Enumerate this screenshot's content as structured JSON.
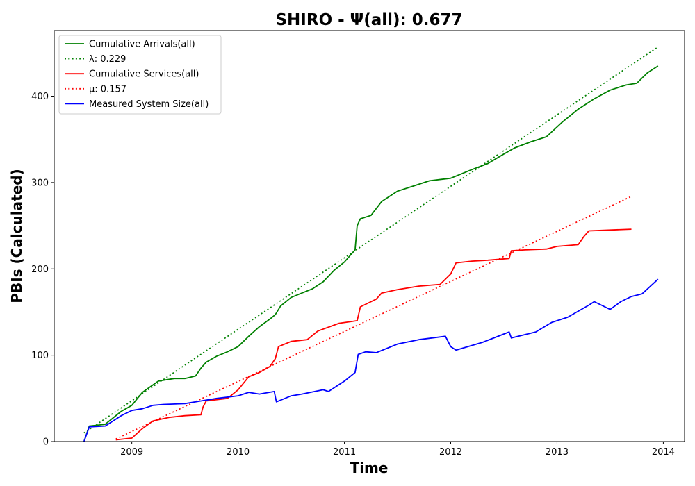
{
  "chart_data": {
    "type": "line",
    "title": "SHIRO -  Ψ(all): 0.677",
    "xlabel": "Time",
    "ylabel": "PBIs (Calculated)",
    "xlim": [
      2008.27,
      2014.2
    ],
    "ylim": [
      0,
      476
    ],
    "x_ticks": [
      2009,
      2010,
      2011,
      2012,
      2013,
      2014
    ],
    "y_ticks": [
      0,
      100,
      200,
      300,
      400
    ],
    "grid": false,
    "legend_position": "top-left",
    "series": [
      {
        "name": "Cumulative Arrivals(all)",
        "color": "#008000",
        "style": "solid",
        "x": [
          2008.55,
          2008.6,
          2008.75,
          2008.9,
          2009.0,
          2009.1,
          2009.25,
          2009.4,
          2009.5,
          2009.6,
          2009.65,
          2009.7,
          2009.8,
          2009.9,
          2010.0,
          2010.1,
          2010.2,
          2010.3,
          2010.35,
          2010.4,
          2010.5,
          2010.6,
          2010.7,
          2010.8,
          2010.9,
          2011.0,
          2011.1,
          2011.12,
          2011.15,
          2011.25,
          2011.35,
          2011.5,
          2011.65,
          2011.8,
          2012.0,
          2012.2,
          2012.35,
          2012.5,
          2012.6,
          2012.75,
          2012.9,
          2013.05,
          2013.2,
          2013.35,
          2013.5,
          2013.65,
          2013.75,
          2013.85,
          2013.95
        ],
        "y": [
          0,
          18,
          20,
          35,
          42,
          57,
          70,
          73,
          73,
          76,
          85,
          92,
          99,
          104,
          110,
          122,
          133,
          142,
          147,
          157,
          167,
          172,
          177,
          185,
          198,
          208,
          222,
          250,
          258,
          262,
          278,
          290,
          296,
          302,
          305,
          315,
          322,
          333,
          340,
          347,
          353,
          370,
          385,
          397,
          407,
          413,
          415,
          427,
          435
        ]
      },
      {
        "name": "λ: 0.229",
        "color": "#008000",
        "style": "dotted",
        "x": [
          2008.55,
          2013.95
        ],
        "y": [
          10,
          457
        ]
      },
      {
        "name": "Cumulative Services(all)",
        "color": "#ff0000",
        "style": "solid",
        "x": [
          2008.85,
          2009.0,
          2009.1,
          2009.2,
          2009.35,
          2009.5,
          2009.65,
          2009.67,
          2009.7,
          2009.9,
          2010.0,
          2010.1,
          2010.2,
          2010.3,
          2010.35,
          2010.38,
          2010.5,
          2010.65,
          2010.75,
          2010.95,
          2011.12,
          2011.15,
          2011.3,
          2011.35,
          2011.5,
          2011.7,
          2011.9,
          2012.0,
          2012.05,
          2012.2,
          2012.35,
          2012.55,
          2012.57,
          2012.7,
          2012.9,
          2013.0,
          2013.2,
          2013.25,
          2013.3,
          2013.5,
          2013.7
        ],
        "y": [
          2,
          4,
          15,
          24,
          28,
          30,
          31,
          40,
          47,
          50,
          60,
          75,
          80,
          87,
          96,
          110,
          116,
          118,
          128,
          137,
          140,
          156,
          165,
          172,
          176,
          180,
          182,
          194,
          207,
          209,
          210,
          212,
          221,
          222,
          223,
          226,
          228,
          237,
          244,
          245,
          246
        ]
      },
      {
        "name": "μ: 0.157",
        "color": "#ff0000",
        "style": "dotted",
        "x": [
          2008.85,
          2013.7
        ],
        "y": [
          3,
          284
        ]
      },
      {
        "name": "Measured System Size(all)",
        "color": "#0000ff",
        "style": "solid",
        "x": [
          2008.55,
          2008.6,
          2008.75,
          2008.9,
          2009.0,
          2009.1,
          2009.2,
          2009.3,
          2009.5,
          2009.65,
          2009.8,
          2010.0,
          2010.1,
          2010.2,
          2010.34,
          2010.36,
          2010.5,
          2010.6,
          2010.8,
          2010.85,
          2011.0,
          2011.1,
          2011.13,
          2011.2,
          2011.3,
          2011.5,
          2011.7,
          2011.95,
          2012.0,
          2012.05,
          2012.3,
          2012.55,
          2012.57,
          2012.8,
          2012.95,
          2013.1,
          2013.3,
          2013.35,
          2013.5,
          2013.6,
          2013.7,
          2013.8,
          2013.95
        ],
        "y": [
          0,
          17,
          18,
          30,
          36,
          38,
          42,
          43,
          44,
          47,
          50,
          53,
          57,
          55,
          58,
          46,
          53,
          55,
          60,
          58,
          70,
          80,
          101,
          104,
          103,
          113,
          118,
          122,
          110,
          106,
          115,
          127,
          120,
          127,
          138,
          144,
          158,
          162,
          153,
          162,
          168,
          171,
          188
        ]
      }
    ]
  }
}
